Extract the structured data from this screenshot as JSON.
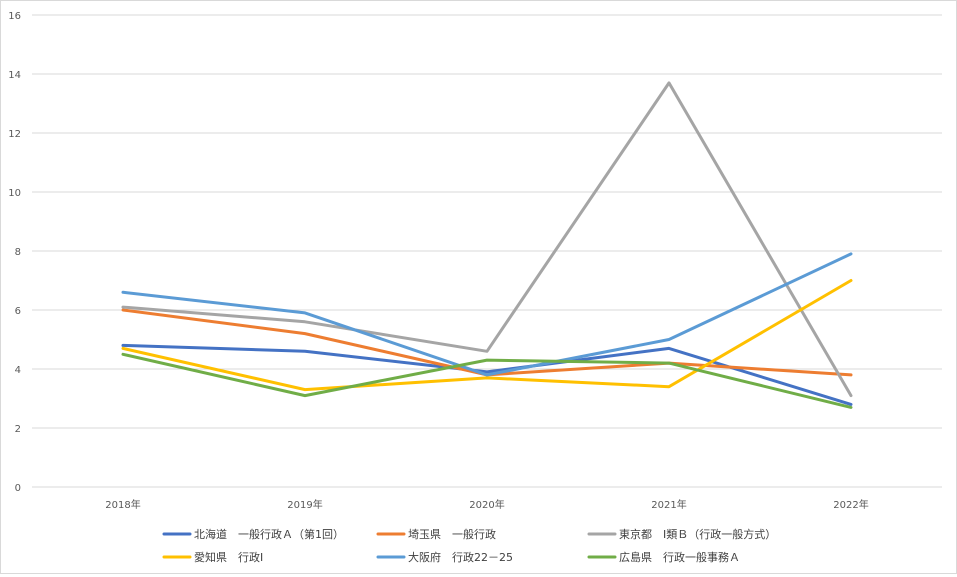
{
  "chart_data": {
    "type": "line",
    "categories": [
      "2018年",
      "2019年",
      "2020年",
      "2021年",
      "2022年"
    ],
    "ylim": [
      0,
      16
    ],
    "yticks": [
      0,
      2,
      4,
      6,
      8,
      10,
      12,
      14,
      16
    ],
    "grid": true,
    "legend_position": "bottom",
    "series": [
      {
        "name": "北海道　一般行政Ａ（第1回）",
        "color": "#4472C4",
        "values": [
          4.8,
          4.6,
          3.9,
          4.7,
          2.8
        ]
      },
      {
        "name": "埼玉県　一般行政",
        "color": "#ED7D31",
        "values": [
          6.0,
          5.2,
          3.8,
          4.2,
          3.8
        ]
      },
      {
        "name": "東京都　Ⅰ類Ｂ（行政一般方式）",
        "color": "#A5A5A5",
        "values": [
          6.1,
          5.6,
          4.6,
          13.7,
          3.1
        ]
      },
      {
        "name": "愛知県　行政Ⅰ",
        "color": "#FFC000",
        "values": [
          4.7,
          3.3,
          3.7,
          3.4,
          7.0
        ]
      },
      {
        "name": "大阪府　行政22－25",
        "color": "#5B9BD5",
        "values": [
          6.6,
          5.9,
          3.8,
          5.0,
          7.9
        ]
      },
      {
        "name": "広島県　行政一般事務Ａ",
        "color": "#70AD47",
        "values": [
          4.5,
          3.1,
          4.3,
          4.2,
          2.7
        ]
      }
    ]
  }
}
